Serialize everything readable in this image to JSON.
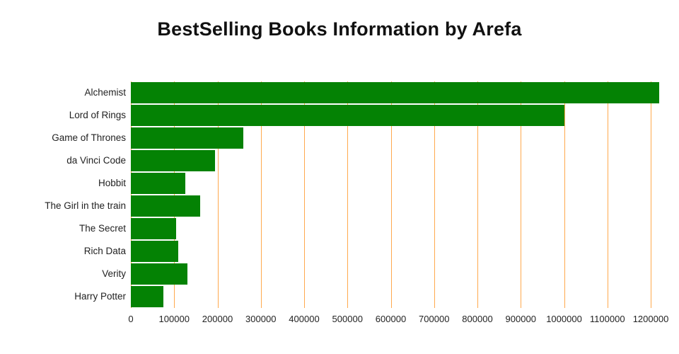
{
  "chart_data": {
    "type": "bar",
    "orientation": "horizontal",
    "title": "BestSelling Books Information by Arefa",
    "categories": [
      "Alchemist",
      "Lord of Rings",
      "Game of Thrones",
      "da Vinci Code",
      "Hobbit",
      "The Girl in the train",
      "The Secret",
      "Rich Data",
      "Verity",
      "Harry Potter"
    ],
    "values": [
      1220000,
      1000000,
      260000,
      195000,
      125000,
      160000,
      105000,
      110000,
      130000,
      75000
    ],
    "xlabel": "",
    "ylabel": "",
    "xlim": [
      0,
      1225000
    ],
    "x_ticks": [
      0,
      100000,
      200000,
      300000,
      400000,
      500000,
      600000,
      700000,
      800000,
      900000,
      1000000,
      1100000,
      1200000
    ],
    "x_tick_labels": [
      "0",
      "100000",
      "200000",
      "300000",
      "400000",
      "500000",
      "600000",
      "700000",
      "800000",
      "900000",
      "1000000",
      "1100000",
      "1200000"
    ],
    "grid": true,
    "legend": "none"
  },
  "colors": {
    "bar": "#048204",
    "gridline": "#ffa94d",
    "title_text": "#111111",
    "tick_text": "#222222",
    "background": "#ffffff"
  }
}
